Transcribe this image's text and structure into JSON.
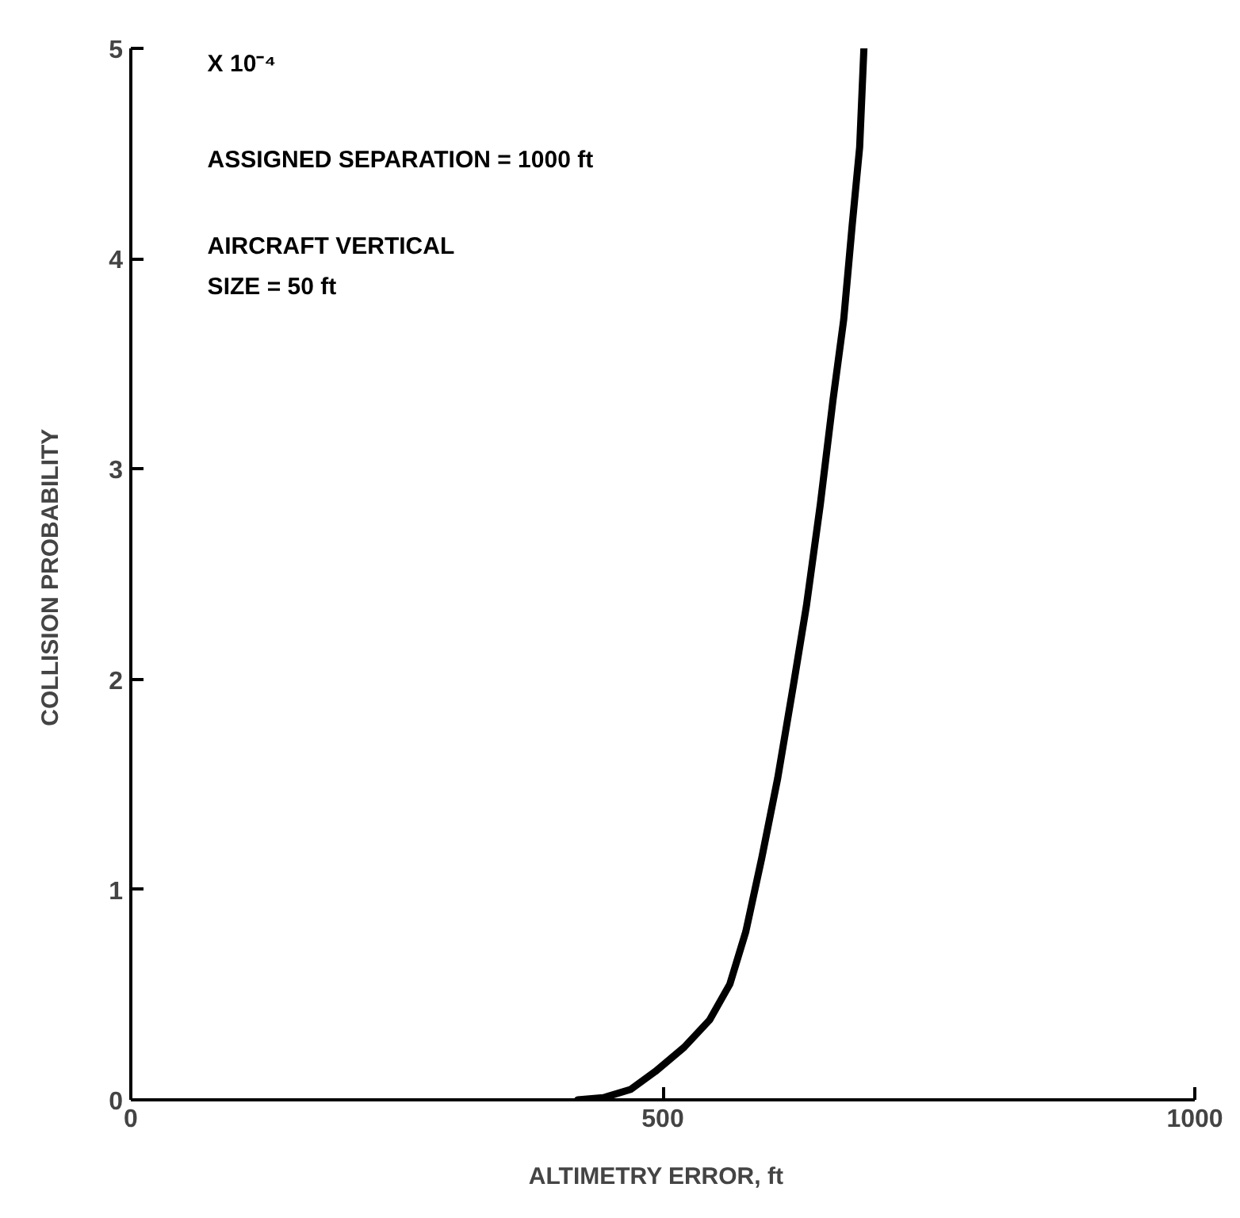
{
  "chart_data": {
    "type": "line",
    "xlabel": "ALTIMETRY  ERROR,  ft",
    "ylabel": "COLLISION  PROBABILITY",
    "annotations": [
      "X 10⁻⁴",
      "ASSIGNED  SEPARATION = 1000 ft",
      "AIRCRAFT  VERTICAL\n    SIZE = 50 ft"
    ],
    "x": [
      420,
      444,
      470,
      493,
      520,
      544,
      563,
      578,
      593,
      608,
      623,
      635,
      648,
      660,
      670,
      678,
      685,
      689
    ],
    "series": [
      {
        "color": "#000000",
        "values": [
          0,
          0.01,
          0.05,
          0.135,
          0.25,
          0.38,
          0.55,
          0.8,
          1.15,
          1.53,
          1.98,
          2.35,
          2.83,
          3.33,
          3.71,
          4.16,
          4.53,
          5.0
        ]
      }
    ],
    "xlim": [
      0,
      1000
    ],
    "ylim": [
      0,
      5
    ],
    "xticks": [
      0,
      500,
      1000
    ],
    "yticks": [
      0,
      1,
      2,
      3,
      4,
      5
    ],
    "grid": false,
    "marker": "none",
    "line_style": "solid"
  }
}
